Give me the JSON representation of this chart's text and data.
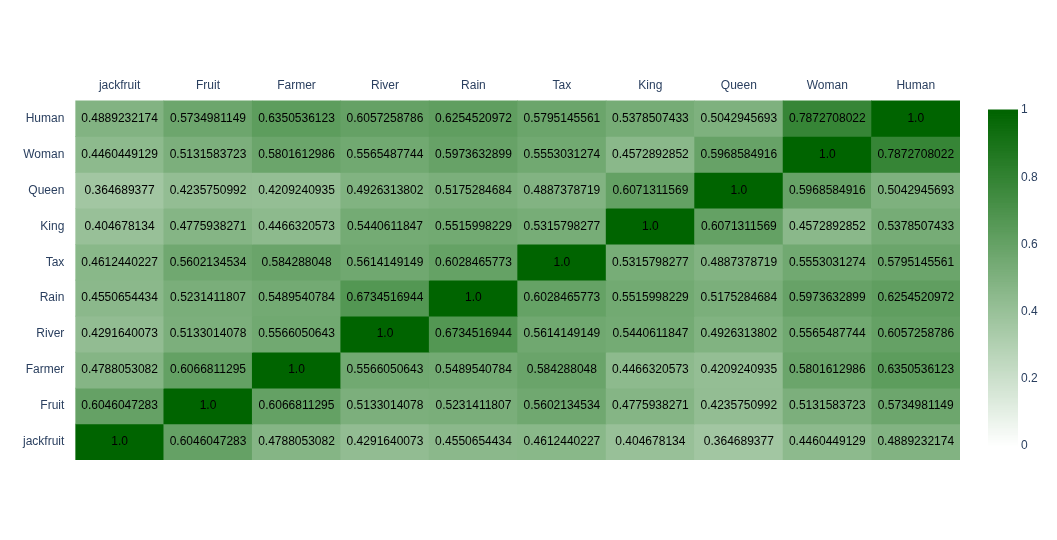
{
  "chart_data": {
    "type": "heatmap",
    "categories": [
      "jackfruit",
      "Fruit",
      "Farmer",
      "River",
      "Rain",
      "Tax",
      "King",
      "Queen",
      "Woman",
      "Human"
    ],
    "y_categories": [
      "Human",
      "Woman",
      "Queen",
      "King",
      "Tax",
      "Rain",
      "River",
      "Farmer",
      "Fruit",
      "jackfruit"
    ],
    "cells": [
      [
        0.4889232174,
        0.5734981149,
        0.6350536123,
        0.6057258786,
        0.6254520972,
        0.5795145561,
        0.5378507433,
        0.5042945693,
        0.7872708022,
        1
      ],
      [
        0.4460449129,
        0.5131583723,
        0.5801612986,
        0.5565487744,
        0.5973632899,
        0.5553031274,
        0.4572892852,
        0.5968584916,
        1,
        0.7872708022
      ],
      [
        0.364689377,
        0.4235750992,
        0.4209240935,
        0.4926313802,
        0.5175284684,
        0.4887378719,
        0.6071311569,
        1,
        0.5968584916,
        0.5042945693
      ],
      [
        0.404678134,
        0.4775938271,
        0.4466320573,
        0.5440611847,
        0.5515998229,
        0.5315798277,
        1,
        0.6071311569,
        0.4572892852,
        0.5378507433
      ],
      [
        0.4612440227,
        0.5602134534,
        0.584288048,
        0.5614149149,
        0.6028465773,
        1,
        0.5315798277,
        0.4887378719,
        0.5553031274,
        0.5795145561
      ],
      [
        0.4550654434,
        0.5231411807,
        0.5489540784,
        0.6734516944,
        1,
        0.6028465773,
        0.5515998229,
        0.5175284684,
        0.5973632899,
        0.6254520972
      ],
      [
        0.4291640073,
        0.5133014078,
        0.5566050643,
        1,
        0.6734516944,
        0.5614149149,
        0.5440611847,
        0.4926313802,
        0.5565487744,
        0.6057258786
      ],
      [
        0.4788053082,
        0.6066811295,
        1,
        0.5566050643,
        0.5489540784,
        0.584288048,
        0.4466320573,
        0.4209240935,
        0.5801612986,
        0.6350536123
      ],
      [
        0.6046047283,
        1,
        0.6066811295,
        0.5133014078,
        0.5231411807,
        0.5602134534,
        0.4775938271,
        0.4235750992,
        0.5131583723,
        0.5734981149
      ],
      [
        1,
        0.6046047283,
        0.4788053082,
        0.4291640073,
        0.4550654434,
        0.4612440227,
        0.404678134,
        0.364689377,
        0.4460449129,
        0.4889232174
      ]
    ],
    "cell_labels": [
      [
        "0.4889232174",
        "0.5734981149",
        "0.6350536123",
        "0.6057258786",
        "0.6254520972",
        "0.5795145561",
        "0.5378507433",
        "0.5042945693",
        "0.7872708022",
        "1.0"
      ],
      [
        "0.4460449129",
        "0.5131583723",
        "0.5801612986",
        "0.5565487744",
        "0.5973632899",
        "0.5553031274",
        "0.4572892852",
        "0.5968584916",
        "1.0",
        "0.7872708022"
      ],
      [
        "0.364689377",
        "0.4235750992",
        "0.4209240935",
        "0.4926313802",
        "0.5175284684",
        "0.4887378719",
        "0.6071311569",
        "1.0",
        "0.5968584916",
        "0.5042945693"
      ],
      [
        "0.404678134",
        "0.4775938271",
        "0.4466320573",
        "0.5440611847",
        "0.5515998229",
        "0.5315798277",
        "1.0",
        "0.6071311569",
        "0.4572892852",
        "0.5378507433"
      ],
      [
        "0.4612440227",
        "0.5602134534",
        "0.584288048",
        "0.5614149149",
        "0.6028465773",
        "1.0",
        "0.5315798277",
        "0.4887378719",
        "0.5553031274",
        "0.5795145561"
      ],
      [
        "0.4550654434",
        "0.5231411807",
        "0.5489540784",
        "0.6734516944",
        "1.0",
        "0.6028465773",
        "0.5515998229",
        "0.5175284684",
        "0.5973632899",
        "0.6254520972"
      ],
      [
        "0.4291640073",
        "0.5133014078",
        "0.5566050643",
        "1.0",
        "0.6734516944",
        "0.5614149149",
        "0.5440611847",
        "0.4926313802",
        "0.5565487744",
        "0.6057258786"
      ],
      [
        "0.4788053082",
        "0.6066811295",
        "1.0",
        "0.5566050643",
        "0.5489540784",
        "0.584288048",
        "0.4466320573",
        "0.4209240935",
        "0.5801612986",
        "0.6350536123"
      ],
      [
        "0.6046047283",
        "1.0",
        "0.6066811295",
        "0.5133014078",
        "0.5231411807",
        "0.5602134534",
        "0.4775938271",
        "0.4235750992",
        "0.5131583723",
        "0.5734981149"
      ],
      [
        "1.0",
        "0.6046047283",
        "0.4788053082",
        "0.4291640073",
        "0.4550654434",
        "0.4612440227",
        "0.404678134",
        "0.364689377",
        "0.4460449129",
        "0.4889232174"
      ]
    ],
    "clim": [
      0,
      1
    ],
    "cticks": [
      0,
      0.2,
      0.4,
      0.6,
      0.8,
      1
    ]
  }
}
